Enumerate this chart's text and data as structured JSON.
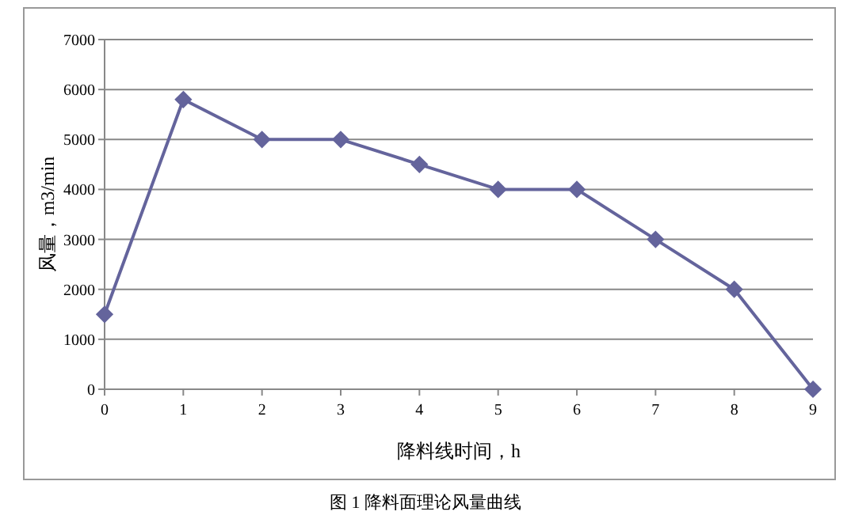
{
  "chart_data": {
    "type": "line",
    "xlabel": "降料线时间，h",
    "ylabel": "风量，m3/min",
    "annotations": [
      "图 1 降料面理论风量曲线"
    ],
    "x": [
      0,
      1,
      2,
      3,
      4,
      5,
      6,
      7,
      8,
      9
    ],
    "series": [
      {
        "color": "#64649c",
        "values": [
          1500,
          5800,
          5000,
          5000,
          4500,
          4000,
          4000,
          3000,
          2000,
          0
        ]
      }
    ],
    "xlim": [
      0,
      9
    ],
    "xticks": [
      0,
      1,
      2,
      3,
      4,
      5,
      6,
      7,
      8,
      9
    ],
    "ylim": [
      0,
      7000
    ],
    "yticks": [
      0,
      1000,
      2000,
      3000,
      4000,
      5000,
      6000,
      7000
    ],
    "grid": "y",
    "marker": "diamond",
    "line_style": "solid"
  }
}
